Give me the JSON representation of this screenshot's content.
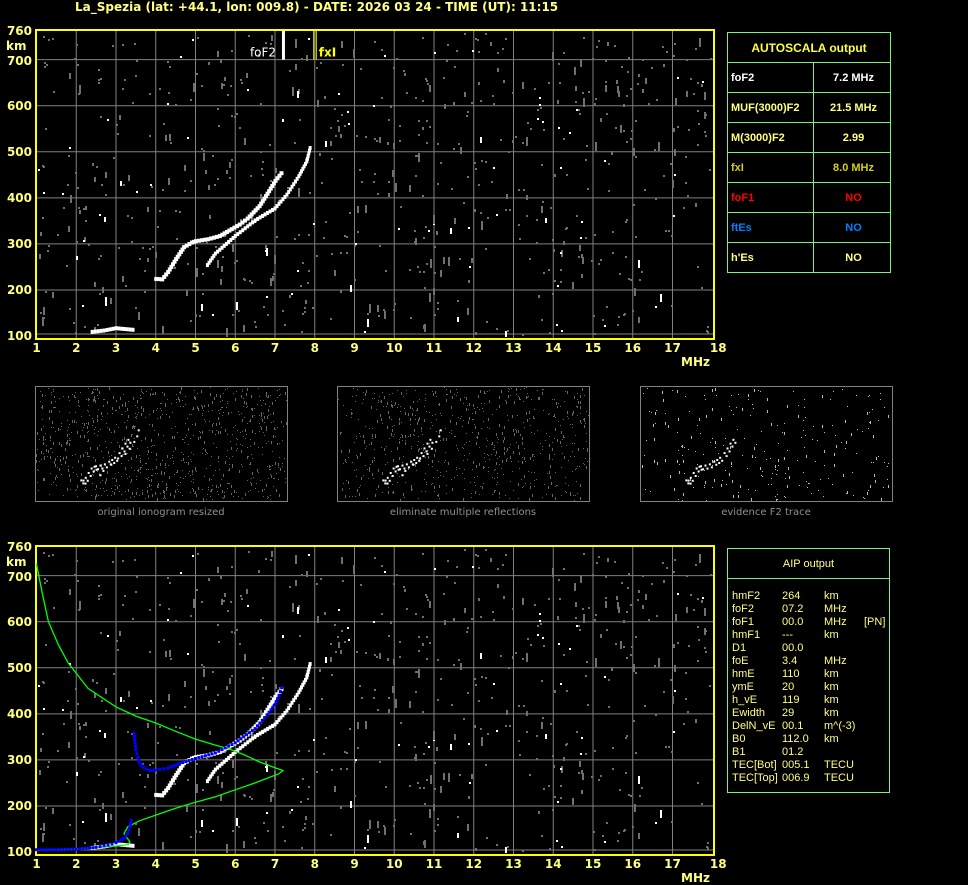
{
  "header": {
    "title": "La_Spezia (lat: +44.1, lon: 009.8) - DATE: 2026 03 24 - TIME (UT): 11:15"
  },
  "colors": {
    "axis": "#ffff00",
    "grid": "#808080",
    "profile": "#00ff00",
    "fit": "#0000ff",
    "table_border": "#7ff07f",
    "text": "#ffff80",
    "no_f1": "#ff0000",
    "no_es": "#0080ff"
  },
  "chart_data": [
    {
      "type": "scatter",
      "name_on_chart": "",
      "xlabel": "MHz",
      "ylabel": "km",
      "xlim": [
        1,
        18
      ],
      "ylim": [
        100,
        760
      ],
      "x_ticks": [
        "1",
        "2",
        "3",
        "4",
        "5",
        "6",
        "7",
        "8",
        "9",
        "10",
        "11",
        "12",
        "13",
        "14",
        "15",
        "16",
        "17",
        "18"
      ],
      "y_ticks": [
        "100",
        "200",
        "300",
        "400",
        "500",
        "600",
        "700",
        "760"
      ],
      "grid": true,
      "markers": [
        {
          "label": "foF2",
          "x": 7.2,
          "color": "#ffffff"
        },
        {
          "label": "fxI",
          "x": 8.0,
          "color": "#ffff00"
        }
      ],
      "traces": {
        "o_trace": [
          [
            4.0,
            225
          ],
          [
            4.15,
            224
          ],
          [
            4.3,
            240
          ],
          [
            4.5,
            268
          ],
          [
            4.7,
            294
          ],
          [
            4.9,
            304
          ],
          [
            5.0,
            307
          ],
          [
            5.3,
            311
          ],
          [
            5.6,
            318
          ],
          [
            5.9,
            333
          ],
          [
            6.1,
            343
          ],
          [
            6.3,
            356
          ],
          [
            6.6,
            383
          ],
          [
            6.8,
            410
          ],
          [
            7.0,
            438
          ],
          [
            7.2,
            460
          ]
        ],
        "x_trace": [
          [
            5.3,
            255
          ],
          [
            5.5,
            280
          ],
          [
            6.0,
            318
          ],
          [
            6.5,
            352
          ],
          [
            7.0,
            378
          ],
          [
            7.3,
            408
          ],
          [
            7.6,
            448
          ],
          [
            7.8,
            480
          ],
          [
            7.9,
            515
          ]
        ],
        "e_trace": [
          [
            2.4,
            110
          ],
          [
            2.7,
            113
          ],
          [
            3.0,
            118
          ],
          [
            3.5,
            114
          ]
        ]
      }
    },
    {
      "type": "line",
      "xlabel": "MHz",
      "ylabel": "km",
      "xlim": [
        1,
        18
      ],
      "ylim": [
        100,
        760
      ],
      "x_ticks": [
        "1",
        "2",
        "3",
        "4",
        "5",
        "6",
        "7",
        "8",
        "9",
        "10",
        "11",
        "12",
        "13",
        "14",
        "15",
        "16",
        "17",
        "18"
      ],
      "y_ticks": [
        "100",
        "200",
        "300",
        "400",
        "500",
        "600",
        "700",
        "760"
      ],
      "grid": true,
      "series": [
        {
          "color": "#00ff00",
          "points": [
            [
              1.0,
              725
            ],
            [
              1.15,
              660
            ],
            [
              1.3,
              600
            ],
            [
              1.55,
              550
            ],
            [
              1.8,
              510
            ],
            [
              2.3,
              455
            ],
            [
              3.0,
              415
            ],
            [
              3.5,
              395
            ],
            [
              4.0,
              380
            ],
            [
              4.5,
              362
            ],
            [
              5.0,
              345
            ],
            [
              5.5,
              332
            ],
            [
              5.8,
              325
            ],
            [
              6.2,
              312
            ],
            [
              6.6,
              296
            ],
            [
              7.0,
              283
            ],
            [
              7.2,
              277
            ],
            [
              7.1,
              270
            ],
            [
              6.5,
              250
            ],
            [
              6.0,
              235
            ],
            [
              5.5,
              220
            ],
            [
              5.0,
              208
            ],
            [
              4.5,
              195
            ],
            [
              4.0,
              180
            ],
            [
              3.6,
              168
            ],
            [
              3.3,
              155
            ],
            [
              3.2,
              140
            ],
            [
              3.35,
              122
            ],
            [
              3.3,
              116
            ],
            [
              3.0,
              113
            ],
            [
              2.5,
              110
            ],
            [
              2.0,
              107
            ],
            [
              1.0,
              103
            ]
          ]
        },
        {
          "color": "#0000ff",
          "points": [
            [
              1.0,
              105
            ],
            [
              1.5,
              105
            ],
            [
              2.0,
              106
            ],
            [
              2.5,
              110
            ],
            [
              2.8,
              115
            ],
            [
              3.0,
              120
            ],
            [
              3.2,
              130
            ],
            [
              3.3,
              140
            ],
            [
              3.35,
              155
            ],
            [
              3.4,
              175
            ]
          ]
        },
        {
          "color": "#0000ff",
          "points": [
            [
              3.45,
              358
            ],
            [
              3.5,
              322
            ],
            [
              3.55,
              305
            ],
            [
              3.6,
              292
            ],
            [
              3.7,
              283
            ],
            [
              3.85,
              277
            ],
            [
              4.0,
              278
            ],
            [
              4.3,
              282
            ],
            [
              4.6,
              292
            ],
            [
              5.0,
              303
            ],
            [
              5.5,
              315
            ],
            [
              6.0,
              337
            ],
            [
              6.5,
              368
            ],
            [
              6.8,
              398
            ],
            [
              7.0,
              420
            ],
            [
              7.1,
              440
            ],
            [
              7.2,
              465
            ]
          ]
        }
      ]
    }
  ],
  "autoscala": {
    "title": "AUTOSCALA output",
    "rows": [
      {
        "label": "foF2",
        "value": "7.2 MHz",
        "color": "#ffffff"
      },
      {
        "label": "MUF(3000)F2",
        "value": "21.5 MHz",
        "color": "#ffff80"
      },
      {
        "label": "M(3000)F2",
        "value": "2.99",
        "color": "#ffff80"
      },
      {
        "label": "fxI",
        "value": "8.0 MHz",
        "color": "#d0d020"
      },
      {
        "label": "foF1",
        "value": "NO",
        "color": "#ff0000"
      },
      {
        "label": "ftEs",
        "value": "NO",
        "color": "#0080ff"
      },
      {
        "label": "h'Es",
        "value": "NO",
        "color": "#ffff80"
      }
    ]
  },
  "aip": {
    "title": "AIP output",
    "rows": [
      {
        "name": "hmF2",
        "value": "264",
        "unit": "km",
        "extra": ""
      },
      {
        "name": "foF2",
        "value": "07.2",
        "unit": "MHz",
        "extra": ""
      },
      {
        "name": "foF1",
        "value": "00.0",
        "unit": "MHz",
        "extra": "[PN]"
      },
      {
        "name": "hmF1",
        "value": "---",
        "unit": "km",
        "extra": ""
      },
      {
        "name": "D1",
        "value": "00.0",
        "unit": "",
        "extra": ""
      },
      {
        "name": "foE",
        "value": "3.4",
        "unit": "MHz",
        "extra": ""
      },
      {
        "name": "hmE",
        "value": "110",
        "unit": "km",
        "extra": ""
      },
      {
        "name": "ymE",
        "value": "20",
        "unit": "km",
        "extra": ""
      },
      {
        "name": "h_vE",
        "value": "119",
        "unit": "km",
        "extra": ""
      },
      {
        "name": "Ewidth",
        "value": "29",
        "unit": "km",
        "extra": ""
      },
      {
        "name": "DelN_vE",
        "value": "00.1",
        "unit": "m^(-3)",
        "extra": ""
      },
      {
        "name": "B0",
        "value": "112.0",
        "unit": "km",
        "extra": ""
      },
      {
        "name": "B1",
        "value": "01.2",
        "unit": "",
        "extra": ""
      },
      {
        "name": "TEC[Bot]",
        "value": "005.1",
        "unit": "TECU",
        "extra": ""
      },
      {
        "name": "TEC[Top]",
        "value": "006.9",
        "unit": "TECU",
        "extra": ""
      }
    ]
  },
  "thumbnails": [
    {
      "label": "original ionogram resized"
    },
    {
      "label": "eliminate multiple reflections"
    },
    {
      "label": "evidence F2 trace"
    }
  ]
}
